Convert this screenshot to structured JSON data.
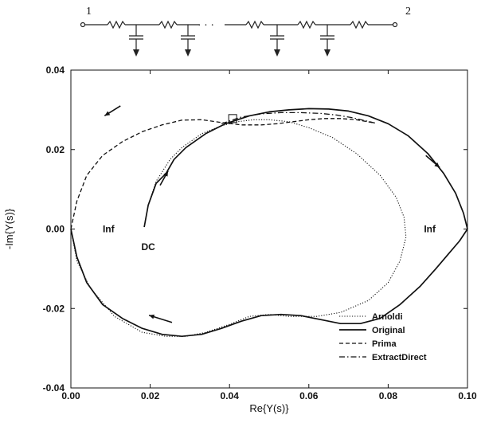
{
  "circuit": {
    "port_left": "1",
    "port_right": "2",
    "ellipsis": "· · ·",
    "resistor_count": 6,
    "capacitor_count": 4
  },
  "chart_data": {
    "type": "line",
    "title": "",
    "xlabel": "Re{Y(s)}",
    "ylabel": "-Im{Y(s)}",
    "xlim": [
      0.0,
      0.1
    ],
    "ylim": [
      -0.04,
      0.04
    ],
    "xticks": [
      "0.00",
      "0.02",
      "0.04",
      "0.06",
      "0.08",
      "0.10"
    ],
    "yticks": [
      "-0.04",
      "-0.02",
      "0.00",
      "0.02",
      "0.04"
    ],
    "grid": false,
    "legend_position": "bottom-right",
    "series": [
      {
        "name": "Arnoldi",
        "style": "dotted",
        "points": [
          [
            0.0185,
            0.0005
          ],
          [
            0.0195,
            0.006
          ],
          [
            0.0215,
            0.012
          ],
          [
            0.025,
            0.0175
          ],
          [
            0.028,
            0.0205
          ],
          [
            0.033,
            0.024
          ],
          [
            0.038,
            0.026
          ],
          [
            0.042,
            0.027
          ],
          [
            0.046,
            0.0275
          ],
          [
            0.05,
            0.0275
          ],
          [
            0.055,
            0.027
          ],
          [
            0.06,
            0.0255
          ],
          [
            0.066,
            0.023
          ],
          [
            0.072,
            0.019
          ],
          [
            0.078,
            0.0135
          ],
          [
            0.082,
            0.008
          ],
          [
            0.084,
            0.003
          ],
          [
            0.0845,
            -0.002
          ],
          [
            0.083,
            -0.008
          ],
          [
            0.08,
            -0.0135
          ],
          [
            0.075,
            -0.018
          ],
          [
            0.068,
            -0.021
          ],
          [
            0.062,
            -0.022
          ],
          [
            0.055,
            -0.022
          ],
          [
            0.05,
            -0.0215
          ],
          [
            0.045,
            -0.022
          ],
          [
            0.04,
            -0.024
          ],
          [
            0.034,
            -0.026
          ],
          [
            0.029,
            -0.027
          ],
          [
            0.024,
            -0.027
          ],
          [
            0.018,
            -0.026
          ],
          [
            0.011,
            -0.022
          ],
          [
            0.005,
            -0.015
          ],
          [
            0.0015,
            -0.008
          ],
          [
            0.0,
            0.0
          ]
        ]
      },
      {
        "name": "Original",
        "style": "solid",
        "points": [
          [
            0.0185,
            0.0005
          ],
          [
            0.0195,
            0.006
          ],
          [
            0.0215,
            0.0115
          ],
          [
            0.024,
            0.014
          ],
          [
            0.026,
            0.0175
          ],
          [
            0.029,
            0.0205
          ],
          [
            0.034,
            0.024
          ],
          [
            0.039,
            0.0265
          ],
          [
            0.045,
            0.0285
          ],
          [
            0.05,
            0.0295
          ],
          [
            0.055,
            0.03
          ],
          [
            0.06,
            0.0303
          ],
          [
            0.065,
            0.0302
          ],
          [
            0.07,
            0.0297
          ],
          [
            0.075,
            0.0285
          ],
          [
            0.08,
            0.0265
          ],
          [
            0.085,
            0.0235
          ],
          [
            0.09,
            0.019
          ],
          [
            0.094,
            0.014
          ],
          [
            0.097,
            0.009
          ],
          [
            0.099,
            0.004
          ],
          [
            0.1,
            0.0
          ]
        ]
      },
      {
        "name": "Prima",
        "style": "dashed",
        "points": [
          [
            0.0,
            0.0
          ],
          [
            0.0015,
            0.007
          ],
          [
            0.004,
            0.0135
          ],
          [
            0.008,
            0.0185
          ],
          [
            0.013,
            0.022
          ],
          [
            0.018,
            0.0245
          ],
          [
            0.023,
            0.0262
          ],
          [
            0.028,
            0.0274
          ],
          [
            0.033,
            0.0275
          ],
          [
            0.038,
            0.0268
          ],
          [
            0.043,
            0.0262
          ],
          [
            0.048,
            0.0262
          ],
          [
            0.052,
            0.0265
          ],
          [
            0.056,
            0.027
          ],
          [
            0.06,
            0.0275
          ],
          [
            0.064,
            0.0278
          ],
          [
            0.068,
            0.0278
          ],
          [
            0.072,
            0.0275
          ],
          [
            0.076,
            0.0268
          ]
        ]
      },
      {
        "name": "ExtractDirect",
        "style": "dashdot",
        "points": [
          [
            0.038,
            0.0265
          ],
          [
            0.043,
            0.0282
          ],
          [
            0.048,
            0.029
          ],
          [
            0.053,
            0.0293
          ],
          [
            0.058,
            0.0293
          ],
          [
            0.063,
            0.0291
          ],
          [
            0.067,
            0.0287
          ],
          [
            0.071,
            0.028
          ],
          [
            0.074,
            0.0273
          ],
          [
            0.077,
            0.0266
          ]
        ]
      },
      {
        "name": "",
        "style": "solid",
        "points": [
          [
            0.0,
            0.0
          ],
          [
            0.0015,
            -0.007
          ],
          [
            0.004,
            -0.0135
          ],
          [
            0.008,
            -0.019
          ],
          [
            0.013,
            -0.0225
          ],
          [
            0.018,
            -0.025
          ],
          [
            0.023,
            -0.0265
          ],
          [
            0.028,
            -0.027
          ],
          [
            0.033,
            -0.0265
          ],
          [
            0.038,
            -0.025
          ],
          [
            0.043,
            -0.0232
          ],
          [
            0.048,
            -0.0218
          ],
          [
            0.053,
            -0.0215
          ],
          [
            0.058,
            -0.0218
          ],
          [
            0.063,
            -0.0228
          ],
          [
            0.068,
            -0.0238
          ],
          [
            0.073,
            -0.0238
          ],
          [
            0.078,
            -0.0225
          ],
          [
            0.083,
            -0.019
          ],
          [
            0.088,
            -0.0145
          ],
          [
            0.092,
            -0.01
          ],
          [
            0.095,
            -0.0065
          ],
          [
            0.098,
            -0.003
          ],
          [
            0.1,
            0.0
          ]
        ]
      }
    ],
    "annotations": [
      {
        "text": "Inf",
        "x": 0.0095,
        "y": 0.0
      },
      {
        "text": "Inf",
        "x": 0.0905,
        "y": 0.0
      },
      {
        "text": "DC",
        "x": 0.0195,
        "y": -0.0045
      }
    ],
    "arrows": [
      {
        "x": 0.0125,
        "y": 0.031,
        "dx": -0.004,
        "dy": -0.0025
      },
      {
        "x": 0.0225,
        "y": 0.011,
        "dx": 0.002,
        "dy": 0.0036
      },
      {
        "x": 0.0895,
        "y": 0.0185,
        "dx": 0.0035,
        "dy": -0.003
      },
      {
        "x": 0.0255,
        "y": -0.0235,
        "dx": -0.0058,
        "dy": 0.0018
      }
    ],
    "marker": {
      "shape": "square",
      "x": 0.0408,
      "y": 0.0278
    }
  }
}
